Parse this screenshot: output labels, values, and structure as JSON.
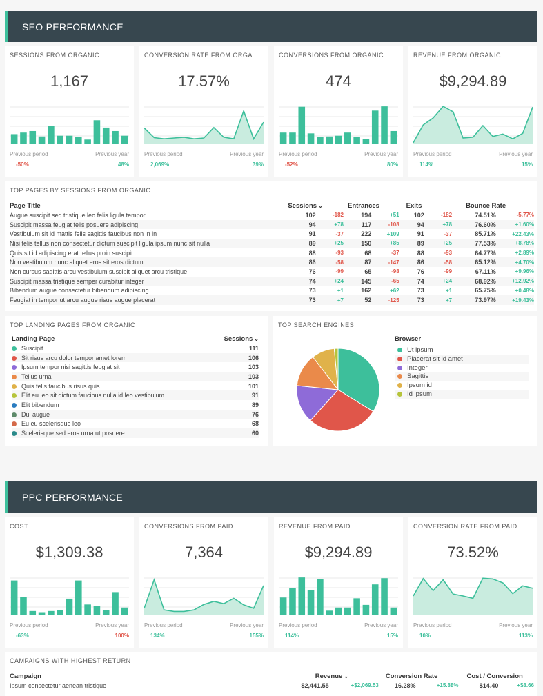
{
  "seo": {
    "title": "SEO PERFORMANCE",
    "kpis": [
      {
        "title": "SESSIONS FROM ORGANIC",
        "value": "1,167",
        "prev_label": "Previous period",
        "year_label": "Previous year",
        "prev": "-50%",
        "year": "48%",
        "prev_color": "#e0564a",
        "year_color": "#3dbf9b",
        "chart": "bar",
        "series": [
          0.26,
          0.3,
          0.34,
          0.2,
          0.47,
          0.22,
          0.22,
          0.18,
          0.12,
          0.62,
          0.43,
          0.34,
          0.22
        ]
      },
      {
        "title": "CONVERSION RATE FROM ORGA...",
        "value": "17.57%",
        "prev_label": "Previous period",
        "year_label": "Previous year",
        "prev": "2,069%",
        "year": "39%",
        "prev_color": "#3dbf9b",
        "year_color": "#3dbf9b",
        "chart": "area",
        "series": [
          0.42,
          0.17,
          0.14,
          0.16,
          0.18,
          0.14,
          0.16,
          0.43,
          0.18,
          0.14,
          0.86,
          0.14,
          0.57
        ]
      },
      {
        "title": "CONVERSIONS FROM ORGANIC",
        "value": "474",
        "prev_label": "Previous period",
        "year_label": "Previous year",
        "prev": "-52%",
        "year": "80%",
        "prev_color": "#e0564a",
        "year_color": "#3dbf9b",
        "chart": "bar",
        "series": [
          0.3,
          0.3,
          0.97,
          0.28,
          0.18,
          0.2,
          0.22,
          0.3,
          0.18,
          0.13,
          0.87,
          0.98,
          0.34
        ]
      },
      {
        "title": "REVENUE FROM ORGANIC",
        "value": "$9,294.89",
        "prev_label": "Previous period",
        "year_label": "Previous year",
        "prev": "114%",
        "year": "15%",
        "prev_color": "#3dbf9b",
        "year_color": "#3dbf9b",
        "chart": "area",
        "series": [
          0.04,
          0.5,
          0.68,
          0.98,
          0.84,
          0.16,
          0.18,
          0.48,
          0.2,
          0.26,
          0.14,
          0.28,
          0.96
        ]
      }
    ],
    "top_pages": {
      "title": "TOP PAGES BY SESSIONS FROM ORGANIC",
      "headers": {
        "page": "Page Title",
        "sessions": "Sessions",
        "entrances": "Entrances",
        "exits": "Exits",
        "bounce": "Bounce Rate"
      },
      "rows": [
        [
          "Augue suscipit sed tristique leo felis ligula tempor",
          "102",
          "-182",
          "194",
          "+51",
          "102",
          "-182",
          "74.51%",
          "-5.77%"
        ],
        [
          "Suscipit massa feugiat felis posuere adipiscing",
          "94",
          "+78",
          "117",
          "-108",
          "94",
          "+78",
          "76.60%",
          "+1.60%"
        ],
        [
          "Vestibulum sit id mattis felis sagittis faucibus non in in",
          "91",
          "-37",
          "222",
          "+109",
          "91",
          "-37",
          "85.71%",
          "+22.43%"
        ],
        [
          "Nisi felis tellus non consectetur dictum suscipit ligula ipsum nunc sit nulla",
          "89",
          "+25",
          "150",
          "+85",
          "89",
          "+25",
          "77.53%",
          "+8.78%"
        ],
        [
          "Quis sit id adipiscing erat tellus proin suscipit",
          "88",
          "-93",
          "68",
          "-37",
          "88",
          "-93",
          "64.77%",
          "+2.89%"
        ],
        [
          "Non vestibulum nunc aliquet eros sit eros dictum",
          "86",
          "-58",
          "87",
          "-147",
          "86",
          "-58",
          "65.12%",
          "+4.70%"
        ],
        [
          "Non cursus sagittis arcu vestibulum suscipit aliquet arcu tristique",
          "76",
          "-99",
          "65",
          "-98",
          "76",
          "-99",
          "67.11%",
          "+9.96%"
        ],
        [
          "Suscipit massa tristique semper curabitur integer",
          "74",
          "+24",
          "145",
          "-65",
          "74",
          "+24",
          "68.92%",
          "+12.92%"
        ],
        [
          "Bibendum augue consectetur bibendum adipiscing",
          "73",
          "+1",
          "162",
          "+62",
          "73",
          "+1",
          "65.75%",
          "+0.48%"
        ],
        [
          "Feugiat in tempor ut arcu augue risus augue placerat",
          "73",
          "+7",
          "52",
          "-125",
          "73",
          "+7",
          "73.97%",
          "+19.43%"
        ]
      ]
    },
    "landing": {
      "title": "TOP LANDING PAGES FROM ORGANIC",
      "headers": {
        "page": "Landing Page",
        "sessions": "Sessions"
      },
      "rows": [
        {
          "label": "Suscipit",
          "value": "111",
          "color": "#3dbf9b"
        },
        {
          "label": "Sit risus arcu dolor tempor amet lorem",
          "value": "106",
          "color": "#e0564a"
        },
        {
          "label": "Ipsum tempor nisi sagittis feugiat sit",
          "value": "103",
          "color": "#8e6bd8"
        },
        {
          "label": "Tellus urna",
          "value": "103",
          "color": "#ea8a4a"
        },
        {
          "label": "Quis felis faucibus risus quis",
          "value": "101",
          "color": "#e0b24a"
        },
        {
          "label": "Elit eu leo sit dictum faucibus nulla id leo vestibulum",
          "value": "91",
          "color": "#b6c43b"
        },
        {
          "label": "Elit bibendum",
          "value": "89",
          "color": "#2a7cc0"
        },
        {
          "label": "Dui augue",
          "value": "76",
          "color": "#5e8a6a"
        },
        {
          "label": "Eu eu scelerisque leo",
          "value": "68",
          "color": "#d46a4a"
        },
        {
          "label": "Scelerisque sed eros urna ut posuere",
          "value": "60",
          "color": "#2a8a8a"
        }
      ]
    },
    "engines": {
      "title": "TOP SEARCH ENGINES",
      "legend_title": "Browser",
      "slices": [
        {
          "label": "Ut ipsum",
          "value": 34,
          "color": "#3dbf9b"
        },
        {
          "label": "Placerat sit id amet",
          "value": 28,
          "color": "#e0564a"
        },
        {
          "label": "Integer",
          "value": 15,
          "color": "#8e6bd8"
        },
        {
          "label": "Sagittis",
          "value": 13,
          "color": "#ea8a4a"
        },
        {
          "label": "Ipsum id",
          "value": 9,
          "color": "#e0b24a"
        },
        {
          "label": "Id ipsum",
          "value": 1.5,
          "color": "#b6c43b"
        }
      ]
    }
  },
  "ppc": {
    "title": "PPC PERFORMANCE",
    "kpis": [
      {
        "title": "COST",
        "value": "$1,309.38",
        "prev_label": "Previous period",
        "year_label": "Previous year",
        "prev": "-63%",
        "year": "100%",
        "prev_color": "#3dbf9b",
        "year_color": "#e0564a",
        "chart": "bar",
        "series": [
          0.9,
          0.47,
          0.11,
          0.08,
          0.11,
          0.13,
          0.43,
          0.9,
          0.28,
          0.25,
          0.13,
          0.6,
          0.2
        ]
      },
      {
        "title": "CONVERSIONS FROM PAID",
        "value": "7,364",
        "prev_label": "Previous period",
        "year_label": "Previous year",
        "prev": "134%",
        "year": "155%",
        "prev_color": "#3dbf9b",
        "year_color": "#3dbf9b",
        "chart": "area",
        "series": [
          0.18,
          0.92,
          0.14,
          0.1,
          0.1,
          0.14,
          0.28,
          0.36,
          0.3,
          0.44,
          0.27,
          0.18,
          0.77
        ]
      },
      {
        "title": "REVENUE FROM PAID",
        "value": "$9,294.89",
        "prev_label": "Previous period",
        "year_label": "Previous year",
        "prev": "114%",
        "year": "15%",
        "prev_color": "#3dbf9b",
        "year_color": "#3dbf9b",
        "chart": "bar",
        "series": [
          0.46,
          0.7,
          0.98,
          0.65,
          0.94,
          0.12,
          0.2,
          0.2,
          0.44,
          0.27,
          0.8,
          0.96,
          0.2
        ]
      },
      {
        "title": "CONVERSION RATE FROM PAID",
        "value": "73.52%",
        "prev_label": "Previous period",
        "year_label": "Previous year",
        "prev": "10%",
        "year": "113%",
        "prev_color": "#3dbf9b",
        "year_color": "#3dbf9b",
        "chart": "area",
        "series": [
          0.5,
          0.95,
          0.64,
          0.92,
          0.55,
          0.5,
          0.44,
          0.96,
          0.94,
          0.84,
          0.56,
          0.76,
          0.7
        ]
      }
    ],
    "campaigns": {
      "title": "CAMPAIGNS WITH HIGHEST RETURN",
      "headers": {
        "campaign": "Campaign",
        "revenue": "Revenue",
        "conv_rate": "Conversion Rate",
        "cost_conv": "Cost / Conversion"
      },
      "rows": [
        [
          "Ipsum consectetur aenean tristique",
          "$2,441.55",
          "+$2,069.53",
          "16.28%",
          "+15.88%",
          "$14.40",
          "+$8.66"
        ]
      ]
    }
  }
}
